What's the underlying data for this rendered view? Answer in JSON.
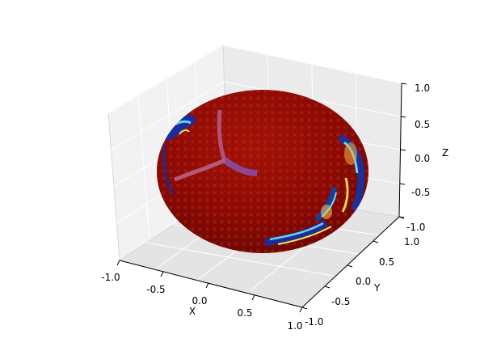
{
  "chart_data": {
    "type": "surface",
    "description_visible": "3D sphere surface colored with jet colormap",
    "colormap": "jet",
    "dominant_color": "#8b0000",
    "grid": true,
    "axes": {
      "x": {
        "label": "X",
        "lim": [
          -1.0,
          1.0
        ],
        "ticks": [
          "-1.0",
          "-0.5",
          "0.0",
          "0.5",
          "1.0"
        ]
      },
      "y": {
        "label": "Y",
        "lim": [
          -1.0,
          1.0
        ],
        "ticks": [
          "-1.0",
          "-0.5",
          "0.0",
          "0.5",
          "1.0"
        ]
      },
      "z": {
        "label": "Z",
        "lim": [
          -1.0,
          1.0
        ],
        "ticks": [
          "-1.0",
          "-0.5",
          "0.0",
          "0.5",
          "1.0"
        ]
      }
    },
    "surface": {
      "shape": "sphere",
      "center": [
        0,
        0,
        0
      ],
      "radius": 1.0
    }
  }
}
